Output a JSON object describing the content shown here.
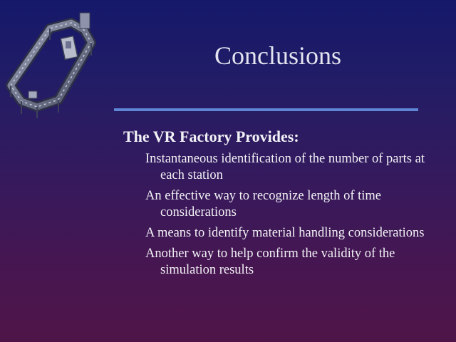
{
  "slide": {
    "title": "Conclusions",
    "heading": "The VR Factory Provides:",
    "bullets": [
      "Instantaneous identification of the number of parts at each station",
      "An effective way to recognize length of time considerations",
      "A means to identify material handling considerations",
      "Another way to help confirm the validity of the simulation results"
    ]
  },
  "colors": {
    "background_top": "#15186a",
    "background_bottom": "#4f1548",
    "rule": "#5f86d4",
    "text": "#f2f2f6"
  }
}
